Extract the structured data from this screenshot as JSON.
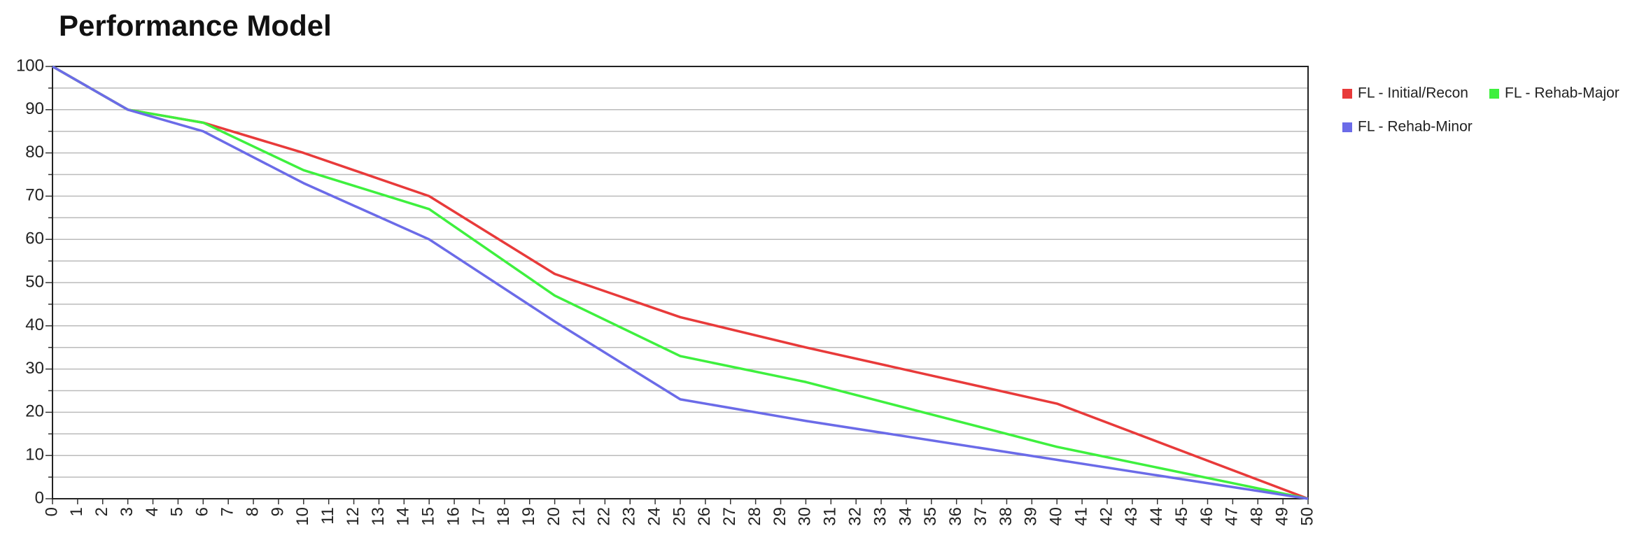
{
  "chart_data": {
    "type": "line",
    "title": "Performance Model",
    "x": [
      0,
      3,
      6,
      10,
      15,
      20,
      25,
      30,
      40,
      50
    ],
    "series": [
      {
        "name": "FL - Initial/Recon",
        "color": "#e83a3a",
        "values": [
          100,
          90,
          87,
          80,
          70,
          52,
          42,
          35,
          22,
          0
        ]
      },
      {
        "name": "FL - Rehab-Major",
        "color": "#3ef03e",
        "values": [
          100,
          90,
          87,
          76,
          67,
          47,
          33,
          27,
          12,
          0
        ]
      },
      {
        "name": "FL - Rehab-Minor",
        "color": "#6b6be8",
        "values": [
          100,
          90,
          85,
          73,
          60,
          41,
          23,
          18,
          9,
          0
        ]
      }
    ],
    "xlim": [
      0,
      50
    ],
    "xticks": [
      0,
      1,
      2,
      3,
      4,
      5,
      6,
      7,
      8,
      9,
      10,
      11,
      12,
      13,
      14,
      15,
      16,
      17,
      18,
      19,
      20,
      21,
      22,
      23,
      24,
      25,
      26,
      27,
      28,
      29,
      30,
      31,
      32,
      33,
      34,
      35,
      36,
      37,
      38,
      39,
      40,
      41,
      42,
      43,
      44,
      45,
      46,
      47,
      48,
      49,
      50
    ],
    "ylim": [
      0,
      100
    ],
    "yticks": [
      0,
      10,
      20,
      30,
      40,
      50,
      60,
      70,
      80,
      90,
      100
    ],
    "minor_yticks": [
      5,
      15,
      25,
      35,
      45,
      55,
      65,
      75,
      85,
      95
    ],
    "grid": true,
    "legend": "right"
  }
}
